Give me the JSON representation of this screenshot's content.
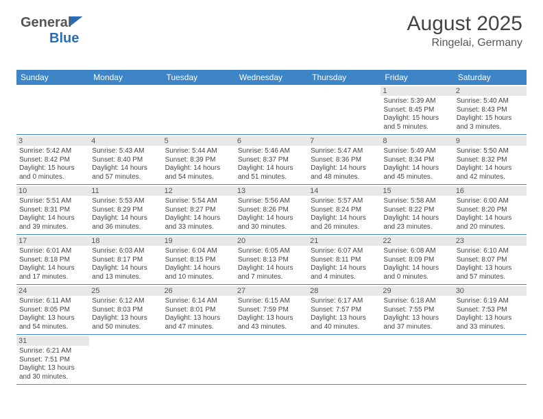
{
  "brand": {
    "part1": "General",
    "part2": "Blue"
  },
  "header": {
    "month_year": "August 2025",
    "location": "Ringelai, Germany"
  },
  "colors": {
    "header_bg": "#3d85c6",
    "header_text": "#ffffff",
    "daynum_bg": "#e8e8e8",
    "row_divider": "#3d85c6",
    "text": "#444444",
    "background": "#ffffff"
  },
  "weekdays": [
    "Sunday",
    "Monday",
    "Tuesday",
    "Wednesday",
    "Thursday",
    "Friday",
    "Saturday"
  ],
  "grid": {
    "first_weekday_index": 5,
    "days_in_month": 31
  },
  "days": {
    "1": {
      "sunrise": "5:39 AM",
      "sunset": "8:45 PM",
      "daylight": "15 hours and 5 minutes."
    },
    "2": {
      "sunrise": "5:40 AM",
      "sunset": "8:43 PM",
      "daylight": "15 hours and 3 minutes."
    },
    "3": {
      "sunrise": "5:42 AM",
      "sunset": "8:42 PM",
      "daylight": "15 hours and 0 minutes."
    },
    "4": {
      "sunrise": "5:43 AM",
      "sunset": "8:40 PM",
      "daylight": "14 hours and 57 minutes."
    },
    "5": {
      "sunrise": "5:44 AM",
      "sunset": "8:39 PM",
      "daylight": "14 hours and 54 minutes."
    },
    "6": {
      "sunrise": "5:46 AM",
      "sunset": "8:37 PM",
      "daylight": "14 hours and 51 minutes."
    },
    "7": {
      "sunrise": "5:47 AM",
      "sunset": "8:36 PM",
      "daylight": "14 hours and 48 minutes."
    },
    "8": {
      "sunrise": "5:49 AM",
      "sunset": "8:34 PM",
      "daylight": "14 hours and 45 minutes."
    },
    "9": {
      "sunrise": "5:50 AM",
      "sunset": "8:32 PM",
      "daylight": "14 hours and 42 minutes."
    },
    "10": {
      "sunrise": "5:51 AM",
      "sunset": "8:31 PM",
      "daylight": "14 hours and 39 minutes."
    },
    "11": {
      "sunrise": "5:53 AM",
      "sunset": "8:29 PM",
      "daylight": "14 hours and 36 minutes."
    },
    "12": {
      "sunrise": "5:54 AM",
      "sunset": "8:27 PM",
      "daylight": "14 hours and 33 minutes."
    },
    "13": {
      "sunrise": "5:56 AM",
      "sunset": "8:26 PM",
      "daylight": "14 hours and 30 minutes."
    },
    "14": {
      "sunrise": "5:57 AM",
      "sunset": "8:24 PM",
      "daylight": "14 hours and 26 minutes."
    },
    "15": {
      "sunrise": "5:58 AM",
      "sunset": "8:22 PM",
      "daylight": "14 hours and 23 minutes."
    },
    "16": {
      "sunrise": "6:00 AM",
      "sunset": "8:20 PM",
      "daylight": "14 hours and 20 minutes."
    },
    "17": {
      "sunrise": "6:01 AM",
      "sunset": "8:18 PM",
      "daylight": "14 hours and 17 minutes."
    },
    "18": {
      "sunrise": "6:03 AM",
      "sunset": "8:17 PM",
      "daylight": "14 hours and 13 minutes."
    },
    "19": {
      "sunrise": "6:04 AM",
      "sunset": "8:15 PM",
      "daylight": "14 hours and 10 minutes."
    },
    "20": {
      "sunrise": "6:05 AM",
      "sunset": "8:13 PM",
      "daylight": "14 hours and 7 minutes."
    },
    "21": {
      "sunrise": "6:07 AM",
      "sunset": "8:11 PM",
      "daylight": "14 hours and 4 minutes."
    },
    "22": {
      "sunrise": "6:08 AM",
      "sunset": "8:09 PM",
      "daylight": "14 hours and 0 minutes."
    },
    "23": {
      "sunrise": "6:10 AM",
      "sunset": "8:07 PM",
      "daylight": "13 hours and 57 minutes."
    },
    "24": {
      "sunrise": "6:11 AM",
      "sunset": "8:05 PM",
      "daylight": "13 hours and 54 minutes."
    },
    "25": {
      "sunrise": "6:12 AM",
      "sunset": "8:03 PM",
      "daylight": "13 hours and 50 minutes."
    },
    "26": {
      "sunrise": "6:14 AM",
      "sunset": "8:01 PM",
      "daylight": "13 hours and 47 minutes."
    },
    "27": {
      "sunrise": "6:15 AM",
      "sunset": "7:59 PM",
      "daylight": "13 hours and 43 minutes."
    },
    "28": {
      "sunrise": "6:17 AM",
      "sunset": "7:57 PM",
      "daylight": "13 hours and 40 minutes."
    },
    "29": {
      "sunrise": "6:18 AM",
      "sunset": "7:55 PM",
      "daylight": "13 hours and 37 minutes."
    },
    "30": {
      "sunrise": "6:19 AM",
      "sunset": "7:53 PM",
      "daylight": "13 hours and 33 minutes."
    },
    "31": {
      "sunrise": "6:21 AM",
      "sunset": "7:51 PM",
      "daylight": "13 hours and 30 minutes."
    }
  },
  "labels": {
    "sunrise": "Sunrise: ",
    "sunset": "Sunset: ",
    "daylight": "Daylight: "
  }
}
